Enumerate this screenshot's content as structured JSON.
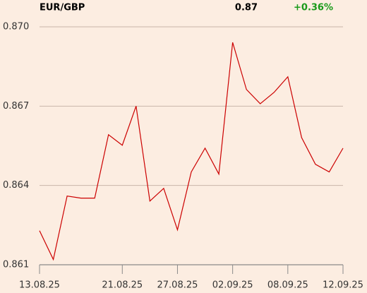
{
  "chart_data": {
    "type": "line",
    "title": "EUR/GBP",
    "last_price": "0.87",
    "change": "+0.36%",
    "categories": [
      "13.08.25",
      null,
      null,
      null,
      null,
      null,
      "21.08.25",
      null,
      null,
      null,
      "27.08.25",
      null,
      null,
      null,
      "02.09.25",
      null,
      null,
      null,
      "08.09.25",
      null,
      null,
      null,
      "12.09.25"
    ],
    "values": [
      0.86229,
      0.8612,
      0.8636,
      0.86352,
      0.86352,
      0.86592,
      0.86552,
      0.867,
      0.86341,
      0.86389,
      0.86232,
      0.86451,
      0.86541,
      0.86443,
      0.86941,
      0.86763,
      0.86709,
      0.86752,
      0.86811,
      0.86581,
      0.8648,
      0.86451,
      0.86541
    ],
    "color": "#cc0000",
    "ylim": [
      0.861,
      0.87
    ],
    "yticks": [
      {
        "value": 0.861,
        "label": "0.861"
      },
      {
        "value": 0.864,
        "label": "0.864"
      },
      {
        "value": 0.867,
        "label": "0.867"
      },
      {
        "value": 0.87,
        "label": "0.870"
      }
    ],
    "grid": true
  }
}
